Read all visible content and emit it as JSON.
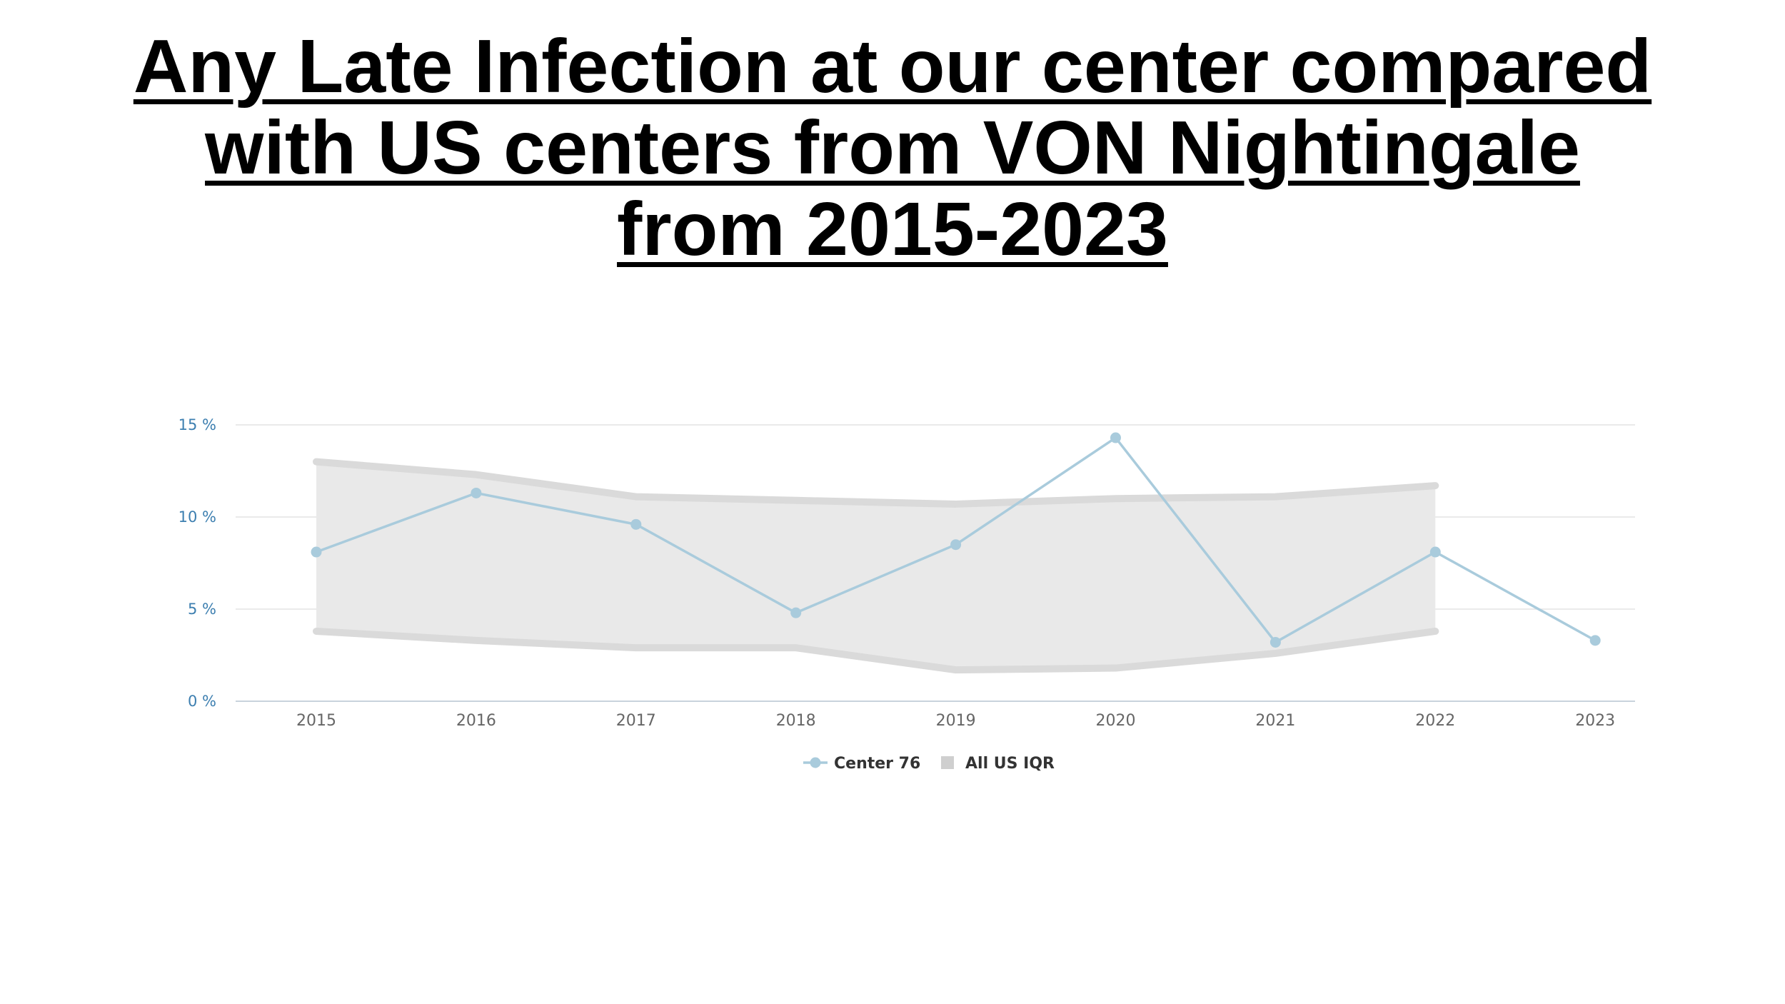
{
  "title": {
    "lines": [
      "Any Late Infection at our center compared",
      "with US centers from VON Nightingale",
      "from 2015-2023"
    ]
  },
  "chart_data": {
    "type": "line",
    "x": [
      "2015",
      "2016",
      "2017",
      "2018",
      "2019",
      "2020",
      "2021",
      "2022",
      "2023"
    ],
    "y_ticks": [
      "0 %",
      "5 %",
      "10 %",
      "15 %"
    ],
    "ylim": [
      0,
      15
    ],
    "grid": true,
    "legend_position": "bottom-center",
    "series": [
      {
        "name": "Center 76",
        "type": "line",
        "color": "#a9cbdc",
        "values": [
          8.1,
          11.3,
          9.6,
          4.8,
          8.5,
          14.3,
          3.2,
          8.1,
          3.3
        ]
      },
      {
        "name": "All US IQR",
        "type": "area-range",
        "color": "#d3d3d3",
        "upper": [
          13.0,
          12.3,
          11.1,
          10.9,
          10.7,
          11.0,
          11.1,
          11.7,
          null
        ],
        "lower": [
          3.8,
          3.3,
          2.9,
          2.9,
          1.7,
          1.8,
          2.6,
          3.8,
          null
        ]
      }
    ]
  }
}
